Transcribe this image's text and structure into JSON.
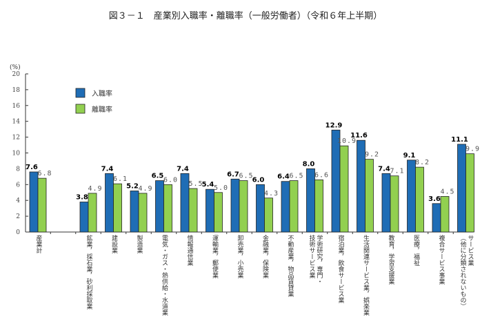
{
  "chart_data": {
    "type": "bar",
    "title": "図３－１　産業別入職率・離職率（一般労働者）（令和６年上半期）",
    "ylabel": "(%)",
    "ylim": [
      0,
      20
    ],
    "yticks": [
      0,
      2,
      4,
      6,
      8,
      10,
      12,
      14,
      16,
      18,
      20
    ],
    "grid": false,
    "legend_position": "top-left",
    "categories": [
      "産業計",
      "鉱業，採石業，砂利採取業",
      "建設業",
      "製造業",
      "電気・ガス・熱供給・水道業",
      "情報通信業",
      "運輸業，郵便業",
      "卸売業，小売業",
      "金融業，保険業",
      "不動産業，物品賃貸業",
      "学術研究，専門・\n技術サービス業",
      "宿泊業，飲食サービス業",
      "生活関連サービス業，娯楽業",
      "教育，学習支援業",
      "医療，福祉",
      "複合サービス事業",
      "サービス業\n（他に分類されないもの）"
    ],
    "series": [
      {
        "name": "入職率",
        "color": "#1f6db5",
        "values": [
          7.6,
          3.8,
          7.4,
          5.2,
          6.5,
          7.4,
          5.4,
          6.7,
          6.0,
          6.4,
          8.0,
          12.9,
          11.6,
          7.4,
          9.1,
          3.6,
          11.1
        ]
      },
      {
        "name": "離職率",
        "color": "#92d050",
        "values": [
          6.8,
          4.9,
          6.1,
          4.9,
          6.0,
          5.5,
          5.0,
          6.5,
          4.3,
          6.5,
          6.6,
          10.9,
          9.2,
          7.1,
          8.2,
          4.5,
          9.9
        ]
      }
    ]
  }
}
